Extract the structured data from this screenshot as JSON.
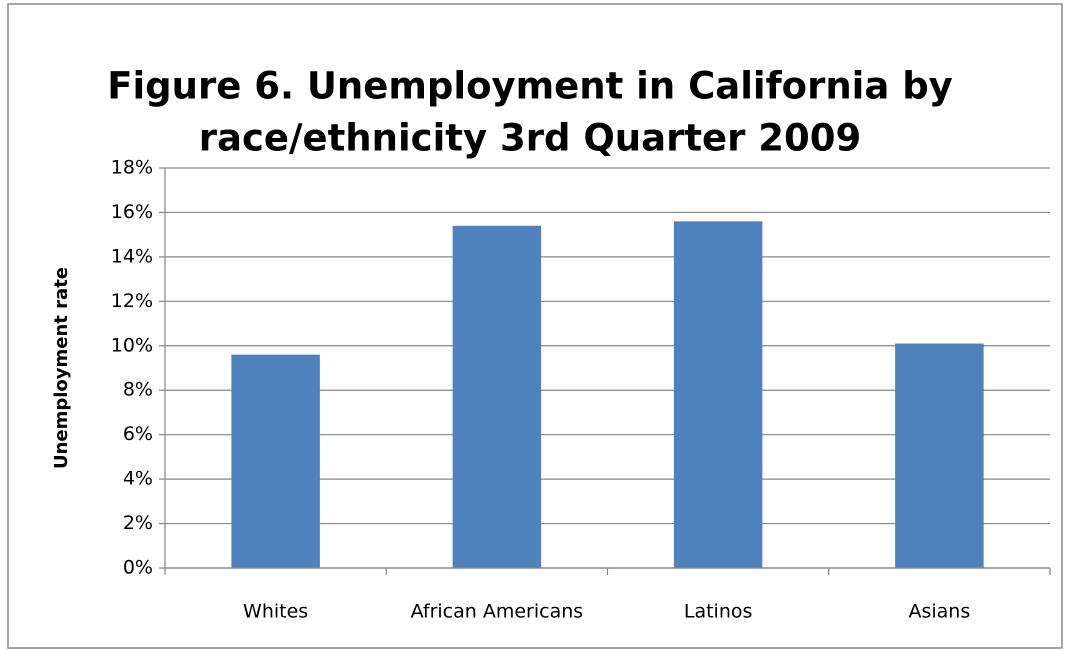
{
  "chart_data": {
    "type": "bar",
    "title": [
      "Figure 6.  Unemployment in California by",
      "race/ethnicity 3rd Quarter 2009"
    ],
    "y_axis_label": "Unemployment rate",
    "categories": [
      "Whites",
      "African Americans",
      "Latinos",
      "Asians"
    ],
    "values": [
      9.6,
      15.4,
      15.6,
      10.1
    ],
    "color": "#4f81bd",
    "ylim": [
      0,
      18
    ],
    "yticks": [
      {
        "value": 0,
        "label": "0%"
      },
      {
        "value": 2,
        "label": "2%"
      },
      {
        "value": 4,
        "label": "4%"
      },
      {
        "value": 6,
        "label": "6%"
      },
      {
        "value": 8,
        "label": "8%"
      },
      {
        "value": 10,
        "label": "10%"
      },
      {
        "value": 12,
        "label": "12%"
      },
      {
        "value": 14,
        "label": "14%"
      },
      {
        "value": 16,
        "label": "16%"
      },
      {
        "value": 18,
        "label": "18%"
      }
    ],
    "grid": true
  }
}
